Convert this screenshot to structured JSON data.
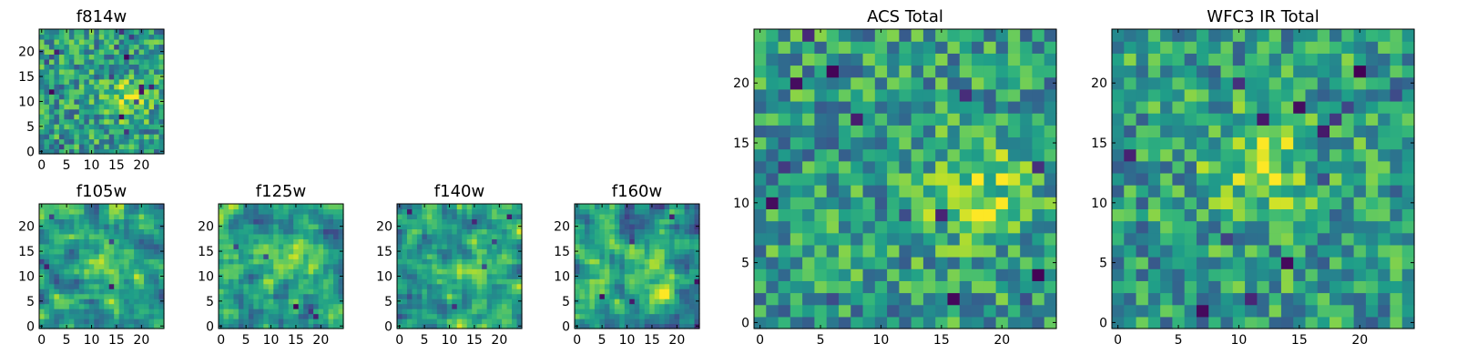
{
  "chart_data": [
    {
      "type": "heatmap",
      "title": "f814w",
      "grid_size": 25,
      "xlim": [
        0,
        24
      ],
      "ylim": [
        0,
        24
      ],
      "xticks": [
        "0",
        "5",
        "10",
        "15",
        "20"
      ],
      "yticks": [
        "0",
        "5",
        "10",
        "15",
        "20"
      ],
      "colormap": "viridis",
      "seed": 11,
      "pixel_noise": true,
      "center": [
        17,
        11
      ],
      "defects": 16
    },
    {
      "type": "heatmap",
      "title": "f105w",
      "grid_size": 25,
      "xlim": [
        0,
        24
      ],
      "ylim": [
        0,
        24
      ],
      "xticks": [
        "0",
        "5",
        "10",
        "15",
        "20"
      ],
      "yticks": [
        "0",
        "5",
        "10",
        "15",
        "20"
      ],
      "colormap": "viridis",
      "seed": 23,
      "pixel_noise": false,
      "center": [
        12,
        12
      ],
      "defects": 5
    },
    {
      "type": "heatmap",
      "title": "f125w",
      "grid_size": 25,
      "xlim": [
        0,
        24
      ],
      "ylim": [
        0,
        24
      ],
      "xticks": [
        "0",
        "5",
        "10",
        "15",
        "20"
      ],
      "yticks": [
        "0",
        "5",
        "10",
        "15",
        "20"
      ],
      "colormap": "viridis",
      "seed": 37,
      "pixel_noise": false,
      "center": [
        14,
        13
      ],
      "defects": 5
    },
    {
      "type": "heatmap",
      "title": "f140w",
      "grid_size": 25,
      "xlim": [
        0,
        24
      ],
      "ylim": [
        0,
        24
      ],
      "xticks": [
        "0",
        "5",
        "10",
        "15",
        "20"
      ],
      "yticks": [
        "0",
        "5",
        "10",
        "15",
        "20"
      ],
      "colormap": "viridis",
      "seed": 41,
      "pixel_noise": false,
      "center": [
        15,
        10
      ],
      "defects": 6
    },
    {
      "type": "heatmap",
      "title": "f160w",
      "grid_size": 25,
      "xlim": [
        0,
        24
      ],
      "ylim": [
        0,
        24
      ],
      "xticks": [
        "0",
        "5",
        "10",
        "15",
        "20"
      ],
      "yticks": [
        "0",
        "5",
        "10",
        "15",
        "20"
      ],
      "colormap": "viridis",
      "seed": 53,
      "pixel_noise": false,
      "center": [
        16,
        10
      ],
      "defects": 6
    },
    {
      "type": "heatmap",
      "title": "ACS Total",
      "grid_size": 25,
      "xlim": [
        0,
        24
      ],
      "ylim": [
        0,
        24
      ],
      "xticks": [
        "0",
        "5",
        "10",
        "15",
        "20"
      ],
      "yticks": [
        "0",
        "5",
        "10",
        "15",
        "20"
      ],
      "colormap": "viridis",
      "seed": 67,
      "pixel_noise": true,
      "center": [
        18,
        11
      ],
      "defects": 14
    },
    {
      "type": "heatmap",
      "title": "WFC3 IR Total",
      "grid_size": 25,
      "xlim": [
        0,
        24
      ],
      "ylim": [
        0,
        24
      ],
      "xticks": [
        "0",
        "5",
        "10",
        "15",
        "20"
      ],
      "yticks": [
        "0",
        "5",
        "10",
        "15",
        "20"
      ],
      "colormap": "viridis",
      "seed": 79,
      "pixel_noise": true,
      "center": [
        12,
        13
      ],
      "defects": 14
    }
  ]
}
